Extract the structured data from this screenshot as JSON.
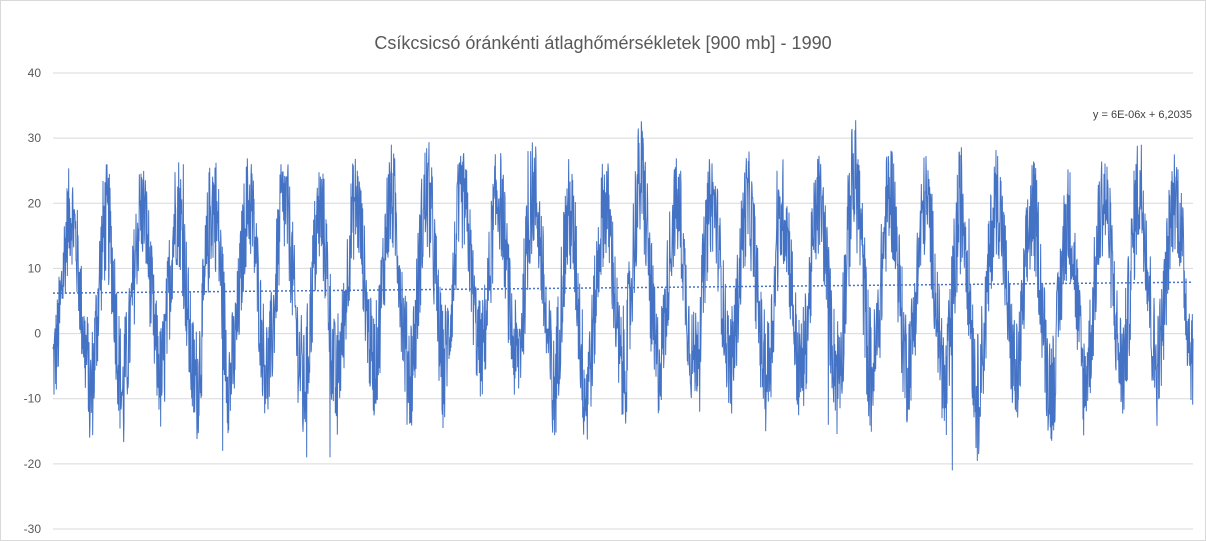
{
  "chart_data": {
    "type": "line",
    "title": "Csíkcsicsó óránkénti átlaghőmérsékletek [900 mb] - 1990",
    "xlabel": "",
    "ylabel": "",
    "ylim": [
      -30,
      40
    ],
    "yticks": [
      40,
      30,
      20,
      10,
      0,
      -10,
      -20,
      -30
    ],
    "ytick_labels": [
      "40",
      "30",
      "20",
      "10",
      "0",
      "-10",
      "-20",
      "-30"
    ],
    "grid": true,
    "series": [
      {
        "kind": "hourly temperature",
        "color": "#4472c4",
        "n_points": 280320,
        "n_annual_cycles": 32,
        "seasonal_peaks": [
          24,
          24,
          25,
          26,
          27,
          26,
          26,
          25,
          26,
          27,
          28,
          26,
          27,
          28,
          25,
          26,
          31,
          25,
          26,
          26,
          25,
          26,
          31,
          28,
          26,
          27,
          27,
          25,
          24,
          27,
          29,
          27
        ],
        "seasonal_troughs": [
          -13,
          -20,
          -14,
          -17,
          -18,
          -14,
          -15,
          -19,
          -13,
          -14,
          -16,
          -11,
          -12,
          -14,
          -20,
          -15,
          -16,
          -13,
          -12,
          -14,
          -16,
          -14,
          -17,
          -15,
          -13,
          -21,
          -14,
          -17,
          -18,
          -14,
          -15,
          -12
        ]
      },
      {
        "kind": "linear trendline",
        "color": "#4472c4",
        "style": "dotted",
        "slope": 6e-06,
        "intercept": 6.2035
      }
    ],
    "annotations": [
      {
        "text": "y = 6E-06x + 6,2035"
      }
    ]
  }
}
